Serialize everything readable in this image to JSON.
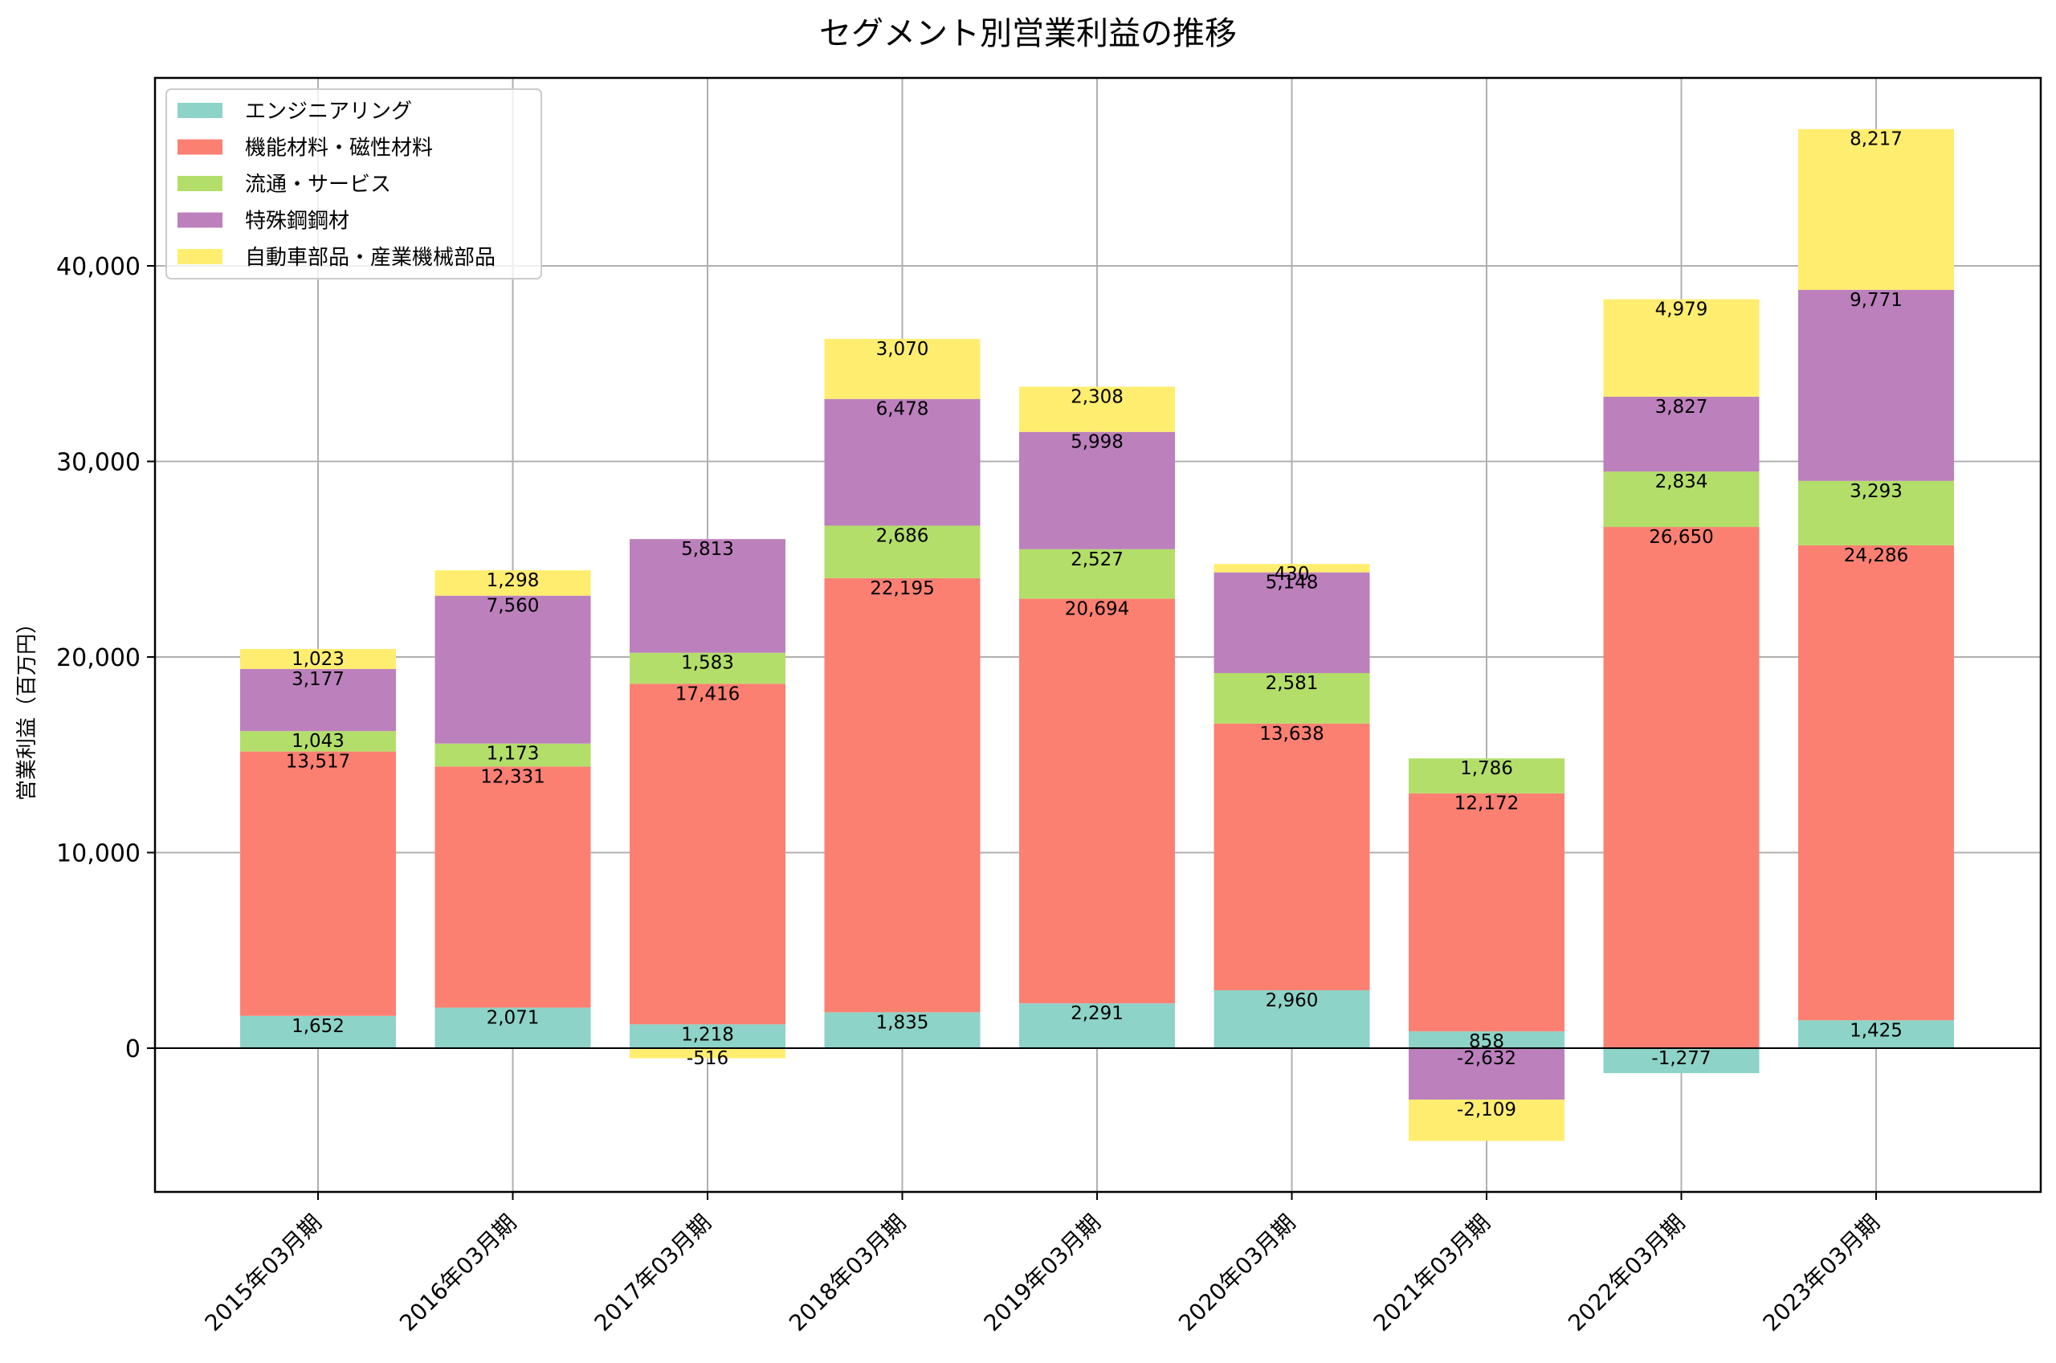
{
  "chart_data": {
    "type": "bar",
    "stacked": true,
    "title": "セグメント別営業利益の推移",
    "xlabel": "",
    "ylabel": "営業利益（百万円）",
    "ylim": [
      -7300,
      50000
    ],
    "yticks": [
      0,
      10000,
      20000,
      30000,
      40000
    ],
    "ytick_labels": [
      "0",
      "10,000",
      "20,000",
      "30,000",
      "40,000"
    ],
    "grid": true,
    "legend_position": "top-left",
    "categories": [
      "2015年03月期",
      "2016年03月期",
      "2017年03月期",
      "2018年03月期",
      "2019年03月期",
      "2020年03月期",
      "2021年03月期",
      "2022年03月期",
      "2023年03月期"
    ],
    "series": [
      {
        "name": "エンジニアリング",
        "color": "#8dd3c7",
        "values": [
          1652,
          2071,
          1218,
          1835,
          2291,
          2960,
          858,
          -1277,
          1425
        ],
        "labels": [
          "1,652",
          "2,071",
          "1,218",
          "1,835",
          "2,291",
          "2,960",
          "858",
          "-1,277",
          "1,425"
        ]
      },
      {
        "name": "機能材料・磁性材料",
        "color": "#fb8072",
        "values": [
          13517,
          12331,
          17416,
          22195,
          20694,
          13638,
          12172,
          26650,
          24286
        ],
        "labels": [
          "13,517",
          "12,331",
          "17,416",
          "22,195",
          "20,694",
          "13,638",
          "12,172",
          "26,650",
          "24,286"
        ]
      },
      {
        "name": "流通・サービス",
        "color": "#b3de69",
        "values": [
          1043,
          1173,
          1583,
          2686,
          2527,
          2581,
          1786,
          2834,
          3293
        ],
        "labels": [
          "1,043",
          "1,173",
          "1,583",
          "2,686",
          "2,527",
          "2,581",
          "1,786",
          "2,834",
          "3,293"
        ]
      },
      {
        "name": "特殊鋼鋼材",
        "color": "#bc80bd",
        "values": [
          3177,
          7560,
          5813,
          6478,
          5998,
          5148,
          -2632,
          3827,
          9771
        ],
        "labels": [
          "3,177",
          "7,560",
          "5,813",
          "6,478",
          "5,998",
          "5,148",
          "-2,632",
          "3,827",
          "9,771"
        ]
      },
      {
        "name": "自動車部品・産業機械部品",
        "color": "#ffed6f",
        "values": [
          1023,
          1298,
          -516,
          3070,
          2308,
          430,
          -2109,
          4979,
          8217
        ],
        "labels": [
          "1,023",
          "1,298",
          "-516",
          "3,070",
          "2,308",
          "430",
          "-2,109",
          "4,979",
          "8,217"
        ]
      }
    ]
  }
}
